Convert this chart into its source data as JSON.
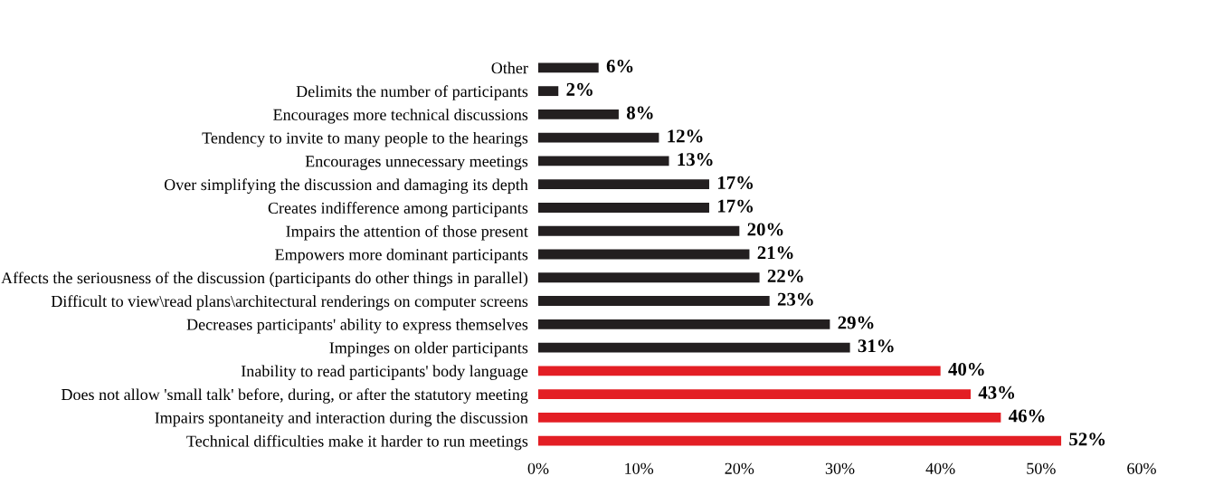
{
  "chart_data": {
    "type": "bar",
    "orientation": "horizontal",
    "categories": [
      "Other",
      "Delimits the number of participants",
      "Encourages more technical discussions",
      "Tendency to invite to many people to the hearings",
      "Encourages unnecessary meetings",
      "Over simplifying the discussion and damaging its depth",
      "Creates indifference among participants",
      "Impairs the attention of those present",
      "Empowers more dominant participants",
      "Affects the seriousness of the discussion (participants do other things in parallel)",
      "Difficult to view\\read plans\\architectural renderings on computer screens",
      "Decreases participants' ability to express themselves",
      "Impinges on older participants",
      "Inability to read participants' body language",
      "Does not allow 'small talk' before, during, or after the statutory meeting",
      "Impairs spontaneity and interaction during the discussion",
      "Technical difficulties make it harder to run meetings"
    ],
    "values": [
      6,
      2,
      8,
      12,
      13,
      17,
      17,
      20,
      21,
      22,
      23,
      29,
      31,
      40,
      43,
      46,
      52
    ],
    "value_labels": [
      "6%",
      "2%",
      "8%",
      "12%",
      "13%",
      "17%",
      "17%",
      "20%",
      "21%",
      "22%",
      "23%",
      "29%",
      "31%",
      "40%",
      "43%",
      "46%",
      "52%"
    ],
    "colors": [
      "#231f20",
      "#231f20",
      "#231f20",
      "#231f20",
      "#231f20",
      "#231f20",
      "#231f20",
      "#231f20",
      "#231f20",
      "#231f20",
      "#231f20",
      "#231f20",
      "#231f20",
      "#e31e24",
      "#e31e24",
      "#e31e24",
      "#e31e24"
    ],
    "xlim": [
      0,
      60
    ],
    "xticks": [
      {
        "value": 0,
        "label": "0%"
      },
      {
        "value": 10,
        "label": "10%"
      },
      {
        "value": 20,
        "label": "20%"
      },
      {
        "value": 30,
        "label": "30%"
      },
      {
        "value": 40,
        "label": "40%"
      },
      {
        "value": 50,
        "label": "50%"
      },
      {
        "value": 60,
        "label": "60%"
      }
    ],
    "grid": false,
    "legend": false
  }
}
